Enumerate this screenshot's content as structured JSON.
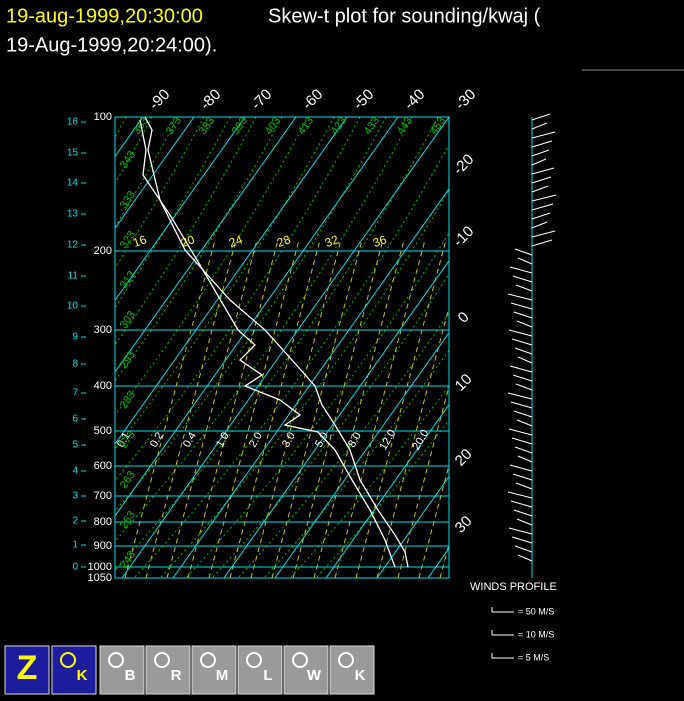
{
  "header": {
    "date": "19-aug-1999,20:30:00",
    "text": "Skew-t plot for sounding/kwaj (",
    "text2": "19-Aug-1999,20:24:00)."
  },
  "pressure_labels": [
    "100",
    "200",
    "300",
    "400",
    "500",
    "600",
    "700",
    "800",
    "900",
    "1000",
    "1050"
  ],
  "height_labels": [
    "0",
    "1",
    "2",
    "3",
    "4",
    "5",
    "6",
    "7",
    "8",
    "9",
    "10",
    "11",
    "12",
    "13",
    "14",
    "15",
    "16"
  ],
  "isotherm_top_labels": [
    "-90",
    "-80",
    "-70",
    "-60",
    "-50",
    "-40",
    "-30"
  ],
  "isotherm_right_labels": [
    "-20",
    "-10",
    "0",
    "10",
    "20",
    "30"
  ],
  "mixing_ratio_labels": [
    "16",
    "20",
    "24",
    "28",
    "32",
    "36"
  ],
  "mixing_ratio_low_labels": [
    "0.1",
    "0.2",
    "0.4",
    "1.0",
    "2.0",
    "3.0",
    "5.0",
    "8.0",
    "12.0",
    "20.0"
  ],
  "adiabat_labels": [
    "453",
    "443",
    "433",
    "423",
    "413",
    "403",
    "393",
    "383",
    "373",
    "363",
    "343",
    "333",
    "323",
    "313",
    "303",
    "293",
    "283",
    "273",
    "263",
    "253",
    "243"
  ],
  "winds": {
    "title": "WINDS PROFILE",
    "legend": [
      "= 50 M/S",
      "= 10 M/S",
      "= 5 M/S"
    ]
  },
  "toolbar": [
    "Z",
    "K",
    "B",
    "R",
    "M",
    "L",
    "W",
    "K"
  ]
}
